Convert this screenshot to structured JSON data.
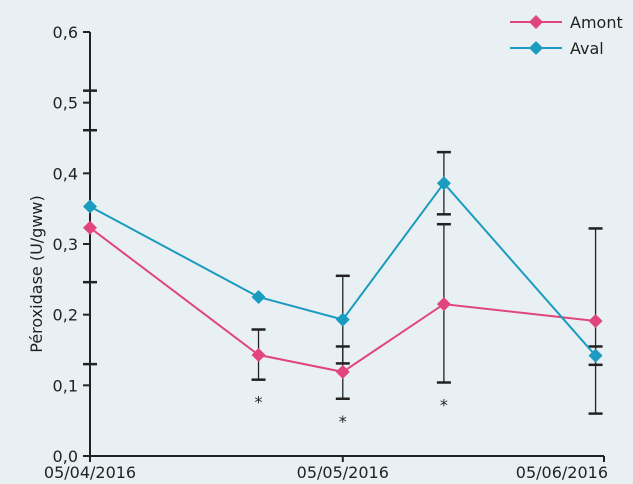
{
  "chart_data": {
    "type": "line",
    "title": "",
    "xlabel": "",
    "ylabel": "Péroxidase (U/gww)",
    "ylim": [
      0,
      0.6
    ],
    "y_ticks": [
      0,
      0.1,
      0.2,
      0.3,
      0.4,
      0.5,
      0.6
    ],
    "y_tick_labels": [
      "0,0",
      "0,1",
      "0,2",
      "0,3",
      "0,4",
      "0,5",
      "0,6"
    ],
    "x_range": [
      "2016-04-05",
      "2016-06-05"
    ],
    "x_tick_labels": [
      {
        "date": "2016-04-05",
        "label": "05/04/2016"
      },
      {
        "date": "2016-05-05",
        "label": "05/05/2016"
      },
      {
        "date": "2016-06-05",
        "label": "05/06/2016"
      }
    ],
    "grid": false,
    "legend_position": "top-right",
    "series": [
      {
        "name": "Amont",
        "color": "#e0457b",
        "marker": "diamond",
        "points": [
          {
            "date": "2016-04-05",
            "y": 0.323,
            "err_low": 0.13,
            "err_high": 0.517
          },
          {
            "date": "2016-04-25",
            "y": 0.143,
            "err_low": 0.108,
            "err_high": 0.179
          },
          {
            "date": "2016-05-05",
            "y": 0.119,
            "err_low": 0.081,
            "err_high": 0.155
          },
          {
            "date": "2016-05-17",
            "y": 0.215,
            "err_low": 0.104,
            "err_high": 0.328
          },
          {
            "date": "2016-06-04",
            "y": 0.191,
            "err_low": 0.06,
            "err_high": 0.322
          }
        ]
      },
      {
        "name": "Aval",
        "color": "#1a9bbf",
        "marker": "diamond",
        "points": [
          {
            "date": "2016-04-05",
            "y": 0.353,
            "err_low": 0.246,
            "err_high": 0.461
          },
          {
            "date": "2016-04-25",
            "y": 0.225,
            "err_low": null,
            "err_high": null
          },
          {
            "date": "2016-05-05",
            "y": 0.193,
            "err_low": 0.131,
            "err_high": 0.255
          },
          {
            "date": "2016-05-17",
            "y": 0.386,
            "err_low": 0.342,
            "err_high": 0.43
          },
          {
            "date": "2016-06-04",
            "y": 0.142,
            "err_low": 0.129,
            "err_high": 0.155
          }
        ]
      }
    ],
    "annotations": [
      {
        "text": "*",
        "date": "2016-04-25",
        "y": 0.108
      },
      {
        "text": "*",
        "date": "2016-05-05",
        "y": 0.081
      },
      {
        "text": "*",
        "date": "2016-05-17",
        "y": 0.104
      }
    ]
  }
}
